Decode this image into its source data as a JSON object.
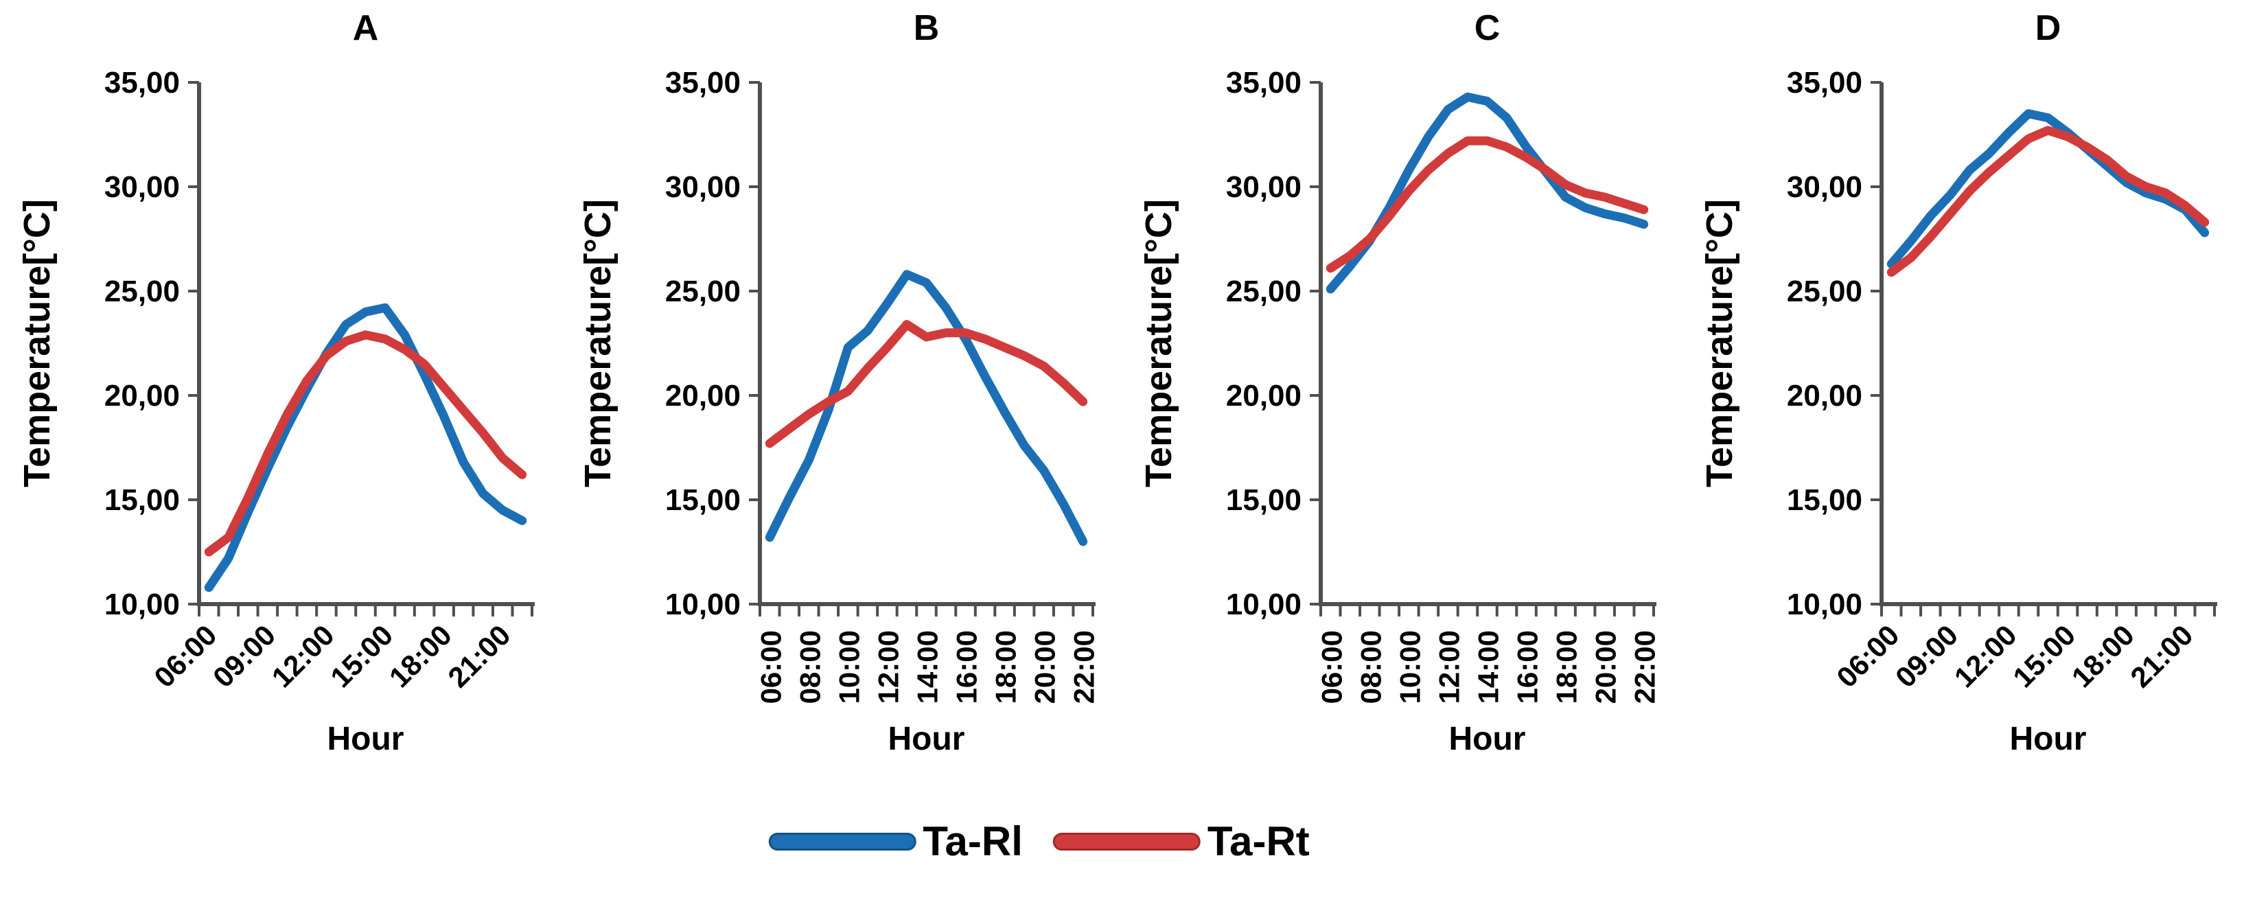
{
  "figure": {
    "axis_color": "#4f4f4f",
    "legend": [
      {
        "label": "Ta-Rl",
        "color": "#1C6FB5",
        "edge": "#14527F"
      },
      {
        "label": "Ta-Rt",
        "color": "#D23B3B",
        "edge": "#9E2B2B"
      }
    ]
  },
  "chart_data": [
    {
      "type": "line",
      "title": "A",
      "xlabel": "Hour",
      "ylabel": "Temperature[°C]",
      "ylim": [
        10,
        35
      ],
      "ytick_labels": [
        "35,00",
        "30,00",
        "25,00",
        "20,00",
        "15,00",
        "10,00"
      ],
      "categories": [
        "06:00",
        "07:00",
        "08:00",
        "09:00",
        "10:00",
        "11:00",
        "12:00",
        "13:00",
        "14:00",
        "15:00",
        "16:00",
        "17:00",
        "18:00",
        "19:00",
        "20:00",
        "21:00",
        "22:00"
      ],
      "xticks": [
        {
          "i": 0,
          "label": "06:00"
        },
        {
          "i": 3,
          "label": "09:00"
        },
        {
          "i": 6,
          "label": "12:00"
        },
        {
          "i": 9,
          "label": "15:00"
        },
        {
          "i": 12,
          "label": "18:00"
        },
        {
          "i": 15,
          "label": "21:00"
        }
      ],
      "xtick_rotation": -45,
      "legend_position": "none",
      "grid": false,
      "series": [
        {
          "name": "Ta-Rl",
          "color": "#1C6FB5",
          "values": [
            10.8,
            12.2,
            14.4,
            16.5,
            18.5,
            20.3,
            22.0,
            23.4,
            24.0,
            24.2,
            22.9,
            21.0,
            19.0,
            16.8,
            15.3,
            14.5,
            14.0
          ]
        },
        {
          "name": "Ta-Rt",
          "color": "#D23B3B",
          "values": [
            12.5,
            13.2,
            15.1,
            17.2,
            19.1,
            20.7,
            21.9,
            22.6,
            22.9,
            22.7,
            22.2,
            21.5,
            20.4,
            19.3,
            18.2,
            17.0,
            16.2
          ]
        }
      ]
    },
    {
      "type": "line",
      "title": "B",
      "xlabel": "Hour",
      "ylabel": "Temperature[°C]",
      "ylim": [
        10,
        35
      ],
      "ytick_labels": [
        "35,00",
        "30,00",
        "25,00",
        "20,00",
        "15,00",
        "10,00"
      ],
      "categories": [
        "06:00",
        "07:00",
        "08:00",
        "09:00",
        "10:00",
        "11:00",
        "12:00",
        "13:00",
        "14:00",
        "15:00",
        "16:00",
        "17:00",
        "18:00",
        "19:00",
        "20:00",
        "21:00",
        "22:00"
      ],
      "xticks": [
        {
          "i": 0,
          "label": "06:00"
        },
        {
          "i": 2,
          "label": "08:00"
        },
        {
          "i": 4,
          "label": "10:00"
        },
        {
          "i": 6,
          "label": "12:00"
        },
        {
          "i": 8,
          "label": "14:00"
        },
        {
          "i": 10,
          "label": "16:00"
        },
        {
          "i": 12,
          "label": "18:00"
        },
        {
          "i": 14,
          "label": "20:00"
        },
        {
          "i": 16,
          "label": "22:00"
        }
      ],
      "xtick_rotation": -90,
      "legend_position": "none",
      "grid": false,
      "series": [
        {
          "name": "Ta-Rl",
          "color": "#1C6FB5",
          "values": [
            13.2,
            15.1,
            16.9,
            19.3,
            22.3,
            23.1,
            24.4,
            25.8,
            25.4,
            24.2,
            22.7,
            20.9,
            19.2,
            17.6,
            16.4,
            14.8,
            13.0
          ]
        },
        {
          "name": "Ta-Rt",
          "color": "#D23B3B",
          "values": [
            17.7,
            18.4,
            19.1,
            19.7,
            20.2,
            21.3,
            22.3,
            23.4,
            22.8,
            23.0,
            23.0,
            22.7,
            22.3,
            21.9,
            21.4,
            20.6,
            19.7
          ]
        }
      ]
    },
    {
      "type": "line",
      "title": "C",
      "xlabel": "Hour",
      "ylabel": "Temperature[°C]",
      "ylim": [
        10,
        35
      ],
      "ytick_labels": [
        "35,00",
        "30,00",
        "25,00",
        "20,00",
        "15,00",
        "10,00"
      ],
      "categories": [
        "06:00",
        "07:00",
        "08:00",
        "09:00",
        "10:00",
        "11:00",
        "12:00",
        "13:00",
        "14:00",
        "15:00",
        "16:00",
        "17:00",
        "18:00",
        "19:00",
        "20:00",
        "21:00",
        "22:00"
      ],
      "xticks": [
        {
          "i": 0,
          "label": "06:00"
        },
        {
          "i": 2,
          "label": "08:00"
        },
        {
          "i": 4,
          "label": "10:00"
        },
        {
          "i": 6,
          "label": "12:00"
        },
        {
          "i": 8,
          "label": "14:00"
        },
        {
          "i": 10,
          "label": "16:00"
        },
        {
          "i": 12,
          "label": "18:00"
        },
        {
          "i": 14,
          "label": "20:00"
        },
        {
          "i": 16,
          "label": "22:00"
        }
      ],
      "xtick_rotation": -90,
      "legend_position": "none",
      "grid": false,
      "series": [
        {
          "name": "Ta-Rl",
          "color": "#1C6FB5",
          "values": [
            25.1,
            26.2,
            27.4,
            29.0,
            30.8,
            32.4,
            33.7,
            34.3,
            34.1,
            33.3,
            31.9,
            30.7,
            29.5,
            29.0,
            28.7,
            28.5,
            28.2
          ]
        },
        {
          "name": "Ta-Rt",
          "color": "#D23B3B",
          "values": [
            26.1,
            26.7,
            27.5,
            28.6,
            29.8,
            30.8,
            31.6,
            32.2,
            32.2,
            31.9,
            31.4,
            30.8,
            30.1,
            29.7,
            29.5,
            29.2,
            28.9
          ]
        }
      ]
    },
    {
      "type": "line",
      "title": "D",
      "xlabel": "Hour",
      "ylabel": "Temperature[°C]",
      "ylim": [
        10,
        35
      ],
      "ytick_labels": [
        "35,00",
        "30,00",
        "25,00",
        "20,00",
        "15,00",
        "10,00"
      ],
      "categories": [
        "06:00",
        "07:00",
        "08:00",
        "09:00",
        "10:00",
        "11:00",
        "12:00",
        "13:00",
        "14:00",
        "15:00",
        "16:00",
        "17:00",
        "18:00",
        "19:00",
        "20:00",
        "21:00",
        "22:00"
      ],
      "xticks": [
        {
          "i": 0,
          "label": "06:00"
        },
        {
          "i": 3,
          "label": "09:00"
        },
        {
          "i": 6,
          "label": "12:00"
        },
        {
          "i": 9,
          "label": "15:00"
        },
        {
          "i": 12,
          "label": "18:00"
        },
        {
          "i": 15,
          "label": "21:00"
        }
      ],
      "xtick_rotation": -45,
      "legend_position": "none",
      "grid": false,
      "series": [
        {
          "name": "Ta-Rl",
          "color": "#1C6FB5",
          "values": [
            26.3,
            27.4,
            28.6,
            29.6,
            30.8,
            31.6,
            32.6,
            33.5,
            33.3,
            32.6,
            31.8,
            31.0,
            30.2,
            29.7,
            29.4,
            28.9,
            27.8
          ]
        },
        {
          "name": "Ta-Rt",
          "color": "#D23B3B",
          "values": [
            25.9,
            26.6,
            27.6,
            28.7,
            29.8,
            30.7,
            31.5,
            32.3,
            32.7,
            32.4,
            31.9,
            31.3,
            30.5,
            30.0,
            29.7,
            29.1,
            28.3
          ]
        }
      ]
    }
  ]
}
